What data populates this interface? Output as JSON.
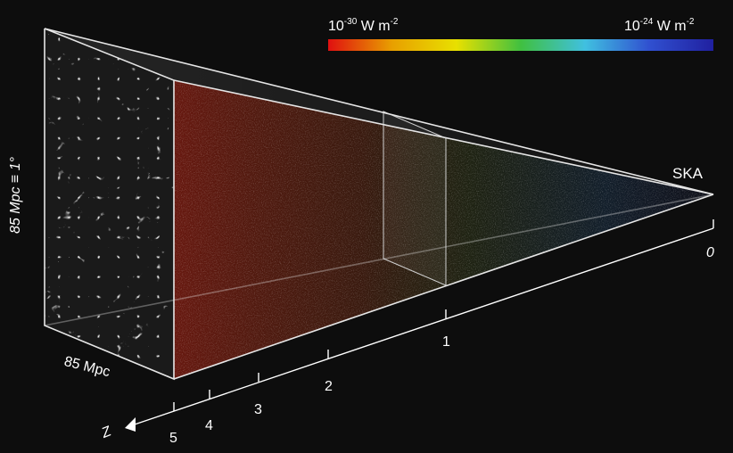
{
  "colorbar": {
    "left_base": "10",
    "left_exp": "-30",
    "left_unit": "W m",
    "left_unit_exp": "-2",
    "right_base": "10",
    "right_exp": "-24",
    "right_unit": "W m",
    "right_unit_exp": "-2",
    "stops": [
      "#e01010",
      "#e8a000",
      "#e8e000",
      "#40c040",
      "#40c0e0",
      "#3050d0",
      "#2020a0"
    ]
  },
  "labels": {
    "telescope": "SKA",
    "depth_size": "85 Mpc",
    "angular_size": "85 Mpc ≡ 1°",
    "axis_name": "Z"
  },
  "axis_ticks": [
    "0",
    "1",
    "2",
    "3",
    "4",
    "5"
  ],
  "colors": {
    "background": "#0d0d0d",
    "frame": "#e6e6e6",
    "web": "#d8d8d8"
  }
}
